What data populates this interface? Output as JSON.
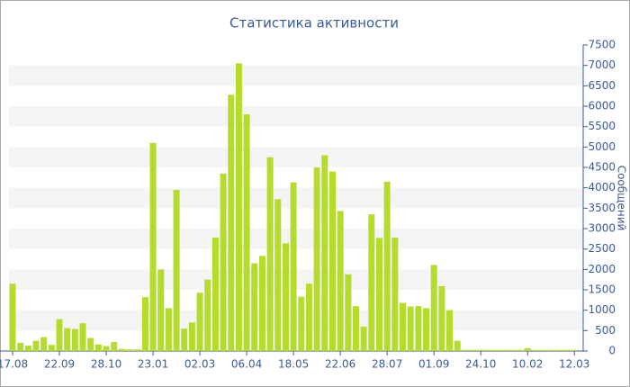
{
  "chart_data": {
    "type": "bar",
    "title": "Статистика активности",
    "y_label": "Сообщений",
    "categories": [
      "17.08",
      null,
      null,
      null,
      null,
      null,
      "22.09",
      null,
      null,
      null,
      null,
      null,
      "28.10",
      null,
      null,
      null,
      null,
      null,
      "23.01",
      null,
      null,
      null,
      null,
      null,
      "02.03",
      null,
      null,
      null,
      null,
      null,
      "06.04",
      null,
      null,
      null,
      null,
      null,
      "18.05",
      null,
      null,
      null,
      null,
      null,
      "22.06",
      null,
      null,
      null,
      null,
      null,
      "28.07",
      null,
      null,
      null,
      null,
      null,
      "01.09",
      null,
      null,
      null,
      null,
      null,
      "24.10",
      null,
      null,
      null,
      null,
      null,
      "10.02",
      null,
      null,
      null,
      null,
      null,
      "12.03"
    ],
    "values": [
      1650,
      200,
      130,
      250,
      340,
      150,
      780,
      560,
      540,
      680,
      320,
      160,
      120,
      220,
      50,
      40,
      40,
      1320,
      5100,
      2000,
      1050,
      3950,
      550,
      700,
      1430,
      1750,
      2780,
      4350,
      6280,
      7050,
      5800,
      2150,
      2330,
      4750,
      3720,
      2640,
      4130,
      1330,
      1650,
      4500,
      4800,
      4400,
      3430,
      1880,
      1100,
      600,
      3350,
      2770,
      4150,
      2780,
      1180,
      1090,
      1100,
      1050,
      2110,
      1590,
      1000,
      250,
      30,
      30,
      30,
      30,
      30,
      30,
      30,
      30,
      70,
      30,
      30,
      30,
      30,
      30,
      30
    ],
    "color": "#b5dc2c",
    "ylim": [
      0,
      7500
    ],
    "yticks": [
      0,
      500,
      1000,
      1500,
      2000,
      2500,
      3000,
      3500,
      4000,
      4500,
      5000,
      5500,
      6000,
      6500,
      7000,
      7500
    ],
    "grid": true
  }
}
